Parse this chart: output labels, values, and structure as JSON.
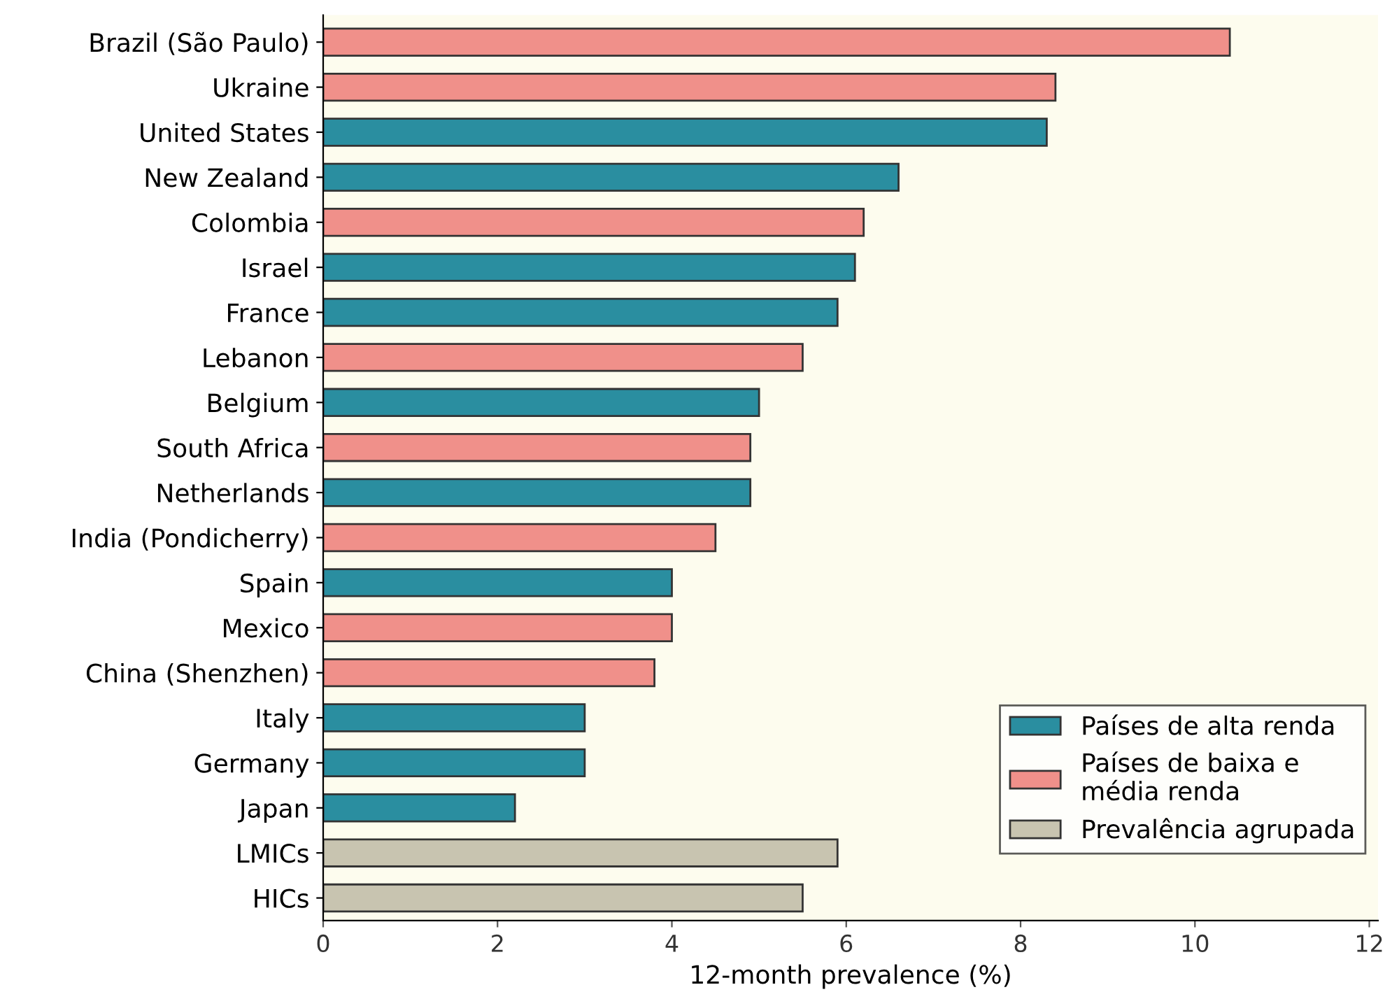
{
  "chart_data": {
    "type": "bar",
    "orientation": "horizontal",
    "xlabel": "12-month prevalence (%)",
    "categories": [
      "Brazil (São Paulo)",
      "Ukraine",
      "United States",
      "New Zealand",
      "Colombia",
      "Israel",
      "France",
      "Lebanon",
      "Belgium",
      "South Africa",
      "Netherlands",
      "India (Pondicherry)",
      "Spain",
      "Mexico",
      "China (Shenzhen)",
      "Italy",
      "Germany",
      "Japan",
      "LMICs",
      "HICs"
    ],
    "series": [
      {
        "name": "Países de alta renda",
        "color": "#2a8ea0",
        "values": [
          null,
          null,
          8.3,
          6.6,
          null,
          6.1,
          5.9,
          null,
          5.0,
          null,
          4.9,
          null,
          4.0,
          null,
          null,
          3.0,
          3.0,
          2.2,
          null,
          null
        ]
      },
      {
        "name": "Países de baixa e\nmédia renda",
        "color": "#f0908a",
        "values": [
          10.4,
          8.4,
          null,
          null,
          6.2,
          null,
          null,
          5.5,
          null,
          4.9,
          null,
          4.5,
          null,
          4.0,
          3.8,
          null,
          null,
          null,
          null,
          null
        ]
      },
      {
        "name": "Prevalência agrupada",
        "color": "#c8c4b0",
        "values": [
          null,
          null,
          null,
          null,
          null,
          null,
          null,
          null,
          null,
          null,
          null,
          null,
          null,
          null,
          null,
          null,
          null,
          null,
          5.9,
          5.5
        ]
      }
    ],
    "xlim": [
      0,
      12.1
    ],
    "xticks": [
      0,
      2,
      4,
      6,
      8,
      10,
      12
    ],
    "grid": false,
    "legend": "bottom right"
  }
}
